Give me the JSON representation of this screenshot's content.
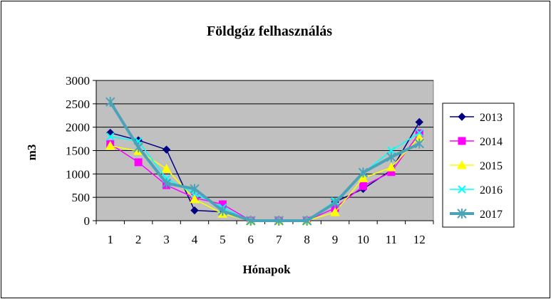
{
  "chart_data": {
    "type": "line",
    "title": "Földgáz felhasználás",
    "xlabel": "Hónapok",
    "ylabel": "m3",
    "categories": [
      "1",
      "2",
      "3",
      "4",
      "5",
      "6",
      "7",
      "8",
      "9",
      "10",
      "11",
      "12"
    ],
    "ylim": [
      0,
      3000
    ],
    "yticks": [
      "0",
      "500",
      "1000",
      "1500",
      "2000",
      "2500",
      "3000"
    ],
    "grid": true,
    "legend_position": "right",
    "plot_background": "#c0c0c0",
    "series": [
      {
        "name": "2013",
        "color": "#000080",
        "marker": "diamond",
        "values": [
          1880,
          1720,
          1520,
          220,
          190,
          0,
          0,
          0,
          400,
          680,
          1080,
          2110
        ]
      },
      {
        "name": "2014",
        "color": "#ff00ff",
        "marker": "square",
        "values": [
          1640,
          1250,
          760,
          490,
          350,
          0,
          0,
          0,
          270,
          740,
          1040,
          1870
        ]
      },
      {
        "name": "2015",
        "color": "#ffff00",
        "marker": "triangle",
        "values": [
          1600,
          1490,
          1110,
          460,
          150,
          0,
          0,
          0,
          180,
          910,
          1140,
          1780
        ]
      },
      {
        "name": "2016",
        "color": "#00ffff",
        "marker": "x",
        "values": [
          1800,
          1700,
          900,
          580,
          280,
          0,
          0,
          0,
          420,
          1020,
          1500,
          1880
        ]
      },
      {
        "name": "2017",
        "color": "#4aa3b8",
        "marker": "star",
        "thick": true,
        "values": [
          2540,
          1570,
          800,
          680,
          210,
          0,
          0,
          0,
          380,
          1030,
          1360,
          1650
        ]
      }
    ]
  }
}
